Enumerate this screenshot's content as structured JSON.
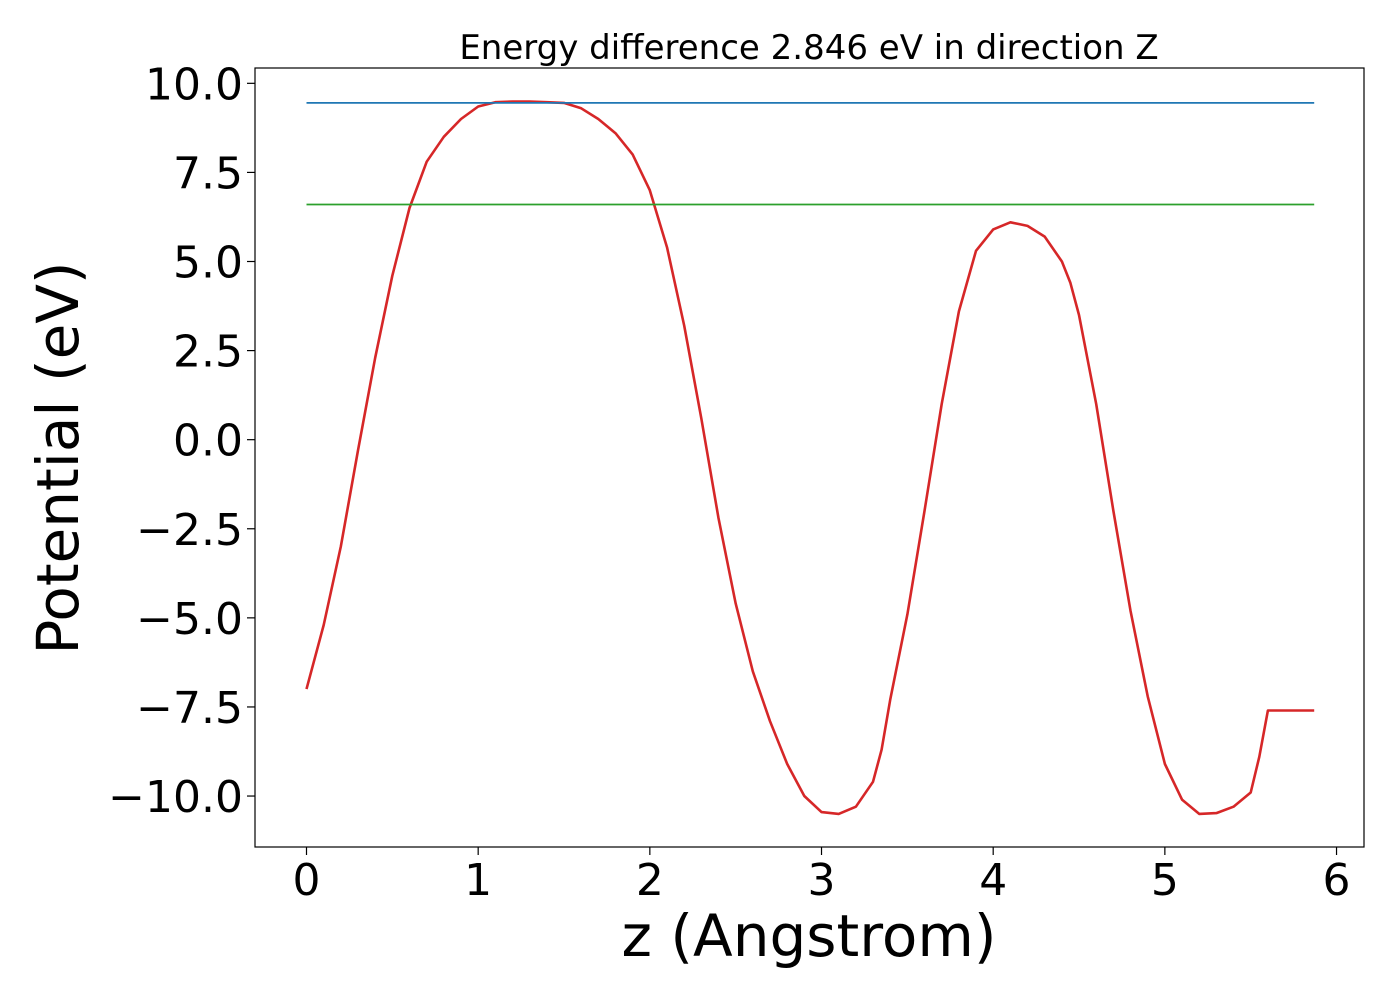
{
  "chart_data": {
    "type": "line",
    "title": "Energy difference 2.846 eV in direction Z",
    "xlabel": "z (Angstrom)",
    "ylabel": "Potential (eV)",
    "xlim": [
      -0.3,
      6.16
    ],
    "ylim": [
      -11.43,
      10.43
    ],
    "xticks": [
      0,
      1,
      2,
      3,
      4,
      5,
      6
    ],
    "xtick_labels": [
      "0",
      "1",
      "2",
      "3",
      "4",
      "5",
      "6"
    ],
    "yticks": [
      10,
      7.5,
      5,
      2.5,
      0,
      -2.5,
      -5,
      -7.5,
      -10
    ],
    "ytick_labels": [
      "10.0",
      "7.5",
      "5.0",
      "2.5",
      "0.0",
      "−2.5",
      "−5.0",
      "−7.5",
      "−10.0"
    ],
    "grid": false,
    "legend": "none",
    "series": [
      {
        "color": "#d62728",
        "x": [
          0,
          0.1,
          0.2,
          0.3,
          0.4,
          0.5,
          0.6,
          0.7,
          0.8,
          0.9,
          1.0,
          1.1,
          1.2,
          1.3,
          1.4,
          1.5,
          1.6,
          1.7,
          1.8,
          1.9,
          2.0,
          2.1,
          2.2,
          2.3,
          2.4,
          2.5,
          2.6,
          2.7,
          2.8,
          2.9,
          3.0,
          3.1,
          3.2,
          3.3,
          3.35,
          3.4,
          3.5,
          3.6,
          3.7,
          3.8,
          3.9,
          4.0,
          4.1,
          4.2,
          4.3,
          4.4,
          4.45,
          4.5,
          4.6,
          4.7,
          4.8,
          4.9,
          5.0,
          5.1,
          5.2,
          5.3,
          5.4,
          5.5,
          5.55,
          5.6,
          5.7,
          5.8,
          5.87
        ],
        "y": [
          -7.0,
          -5.2,
          -3.0,
          -0.3,
          2.3,
          4.6,
          6.5,
          7.8,
          8.5,
          9.0,
          9.35,
          9.47,
          9.49,
          9.49,
          9.47,
          9.45,
          9.3,
          9.0,
          8.6,
          8.0,
          7.0,
          5.4,
          3.2,
          0.6,
          -2.2,
          -4.6,
          -6.5,
          -7.9,
          -9.1,
          -10.0,
          -10.45,
          -10.5,
          -10.3,
          -9.6,
          -8.7,
          -7.3,
          -4.9,
          -2.0,
          1.0,
          3.6,
          5.3,
          5.9,
          6.1,
          6.0,
          5.7,
          5.0,
          4.4,
          3.5,
          1.0,
          -2.0,
          -4.8,
          -7.2,
          -9.1,
          -10.1,
          -10.5,
          -10.48,
          -10.3,
          -9.9,
          -8.9,
          -7.6,
          -7.6,
          -7.6,
          -7.6
        ],
        "values_note_free": true
      },
      {
        "color": "#1f77b4",
        "x": [
          0,
          5.87
        ],
        "y": [
          9.45,
          9.45
        ]
      },
      {
        "color": "#2ca02c",
        "x": [
          0,
          5.87
        ],
        "y": [
          6.6,
          6.6
        ]
      }
    ]
  }
}
